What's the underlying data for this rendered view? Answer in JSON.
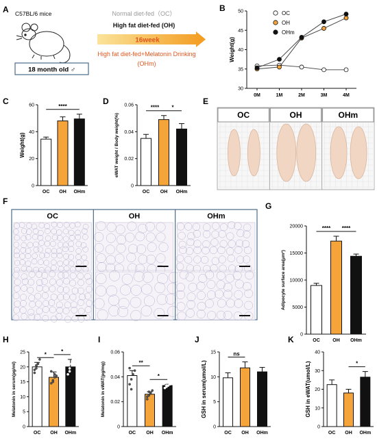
{
  "colors": {
    "oc": "#ffffff",
    "oh": "#f5a43a",
    "ohm": "#111111",
    "dot": "#555555",
    "frame": "#4a6a8a",
    "tissue": "#f1d6c4",
    "arrow_start": "#f7c85a",
    "arrow_end": "#f39b1e",
    "ohm_text": "#e0561c"
  },
  "panel_a": {
    "letter": "A",
    "mouse_label": "C57BL/6 mice",
    "age_label": "18 month old ♂",
    "groups": [
      {
        "label": "Normal diet-fed（OC）",
        "color": "#9a9a9a"
      },
      {
        "label": "High fat diet-fed (OH)",
        "color": "#111111"
      }
    ],
    "duration": "16week",
    "ohm_lines": [
      "High fat diet-fed+Melatonin Drinking",
      "(OHm)"
    ]
  },
  "panel_e": {
    "letter": "E",
    "labels": [
      "OC",
      "OH",
      "OHm"
    ]
  },
  "panel_f": {
    "letter": "F",
    "labels": [
      "OC",
      "OH",
      "OHm"
    ]
  },
  "chart_data": [
    {
      "id": "B",
      "type": "line",
      "letter": "B",
      "x": [
        "0M",
        "1M",
        "2M",
        "3M",
        "4M"
      ],
      "ylabel": "Weight(g)",
      "ylim": [
        30,
        50
      ],
      "yticks": [
        30,
        35,
        40,
        45,
        50
      ],
      "legend": "top-left",
      "series": [
        {
          "name": "OC",
          "values": [
            35.8,
            36.0,
            35.5,
            34.8,
            34.8
          ],
          "marker": "#ffffff"
        },
        {
          "name": "OH",
          "values": [
            35.0,
            35.5,
            43.0,
            45.5,
            48.2
          ],
          "marker": "#f5a43a"
        },
        {
          "name": "OHm",
          "values": [
            35.3,
            37.5,
            43.2,
            47.2,
            49.2
          ],
          "marker": "#111111"
        }
      ]
    },
    {
      "id": "C",
      "type": "bar",
      "letter": "C",
      "categories": [
        "OC",
        "OH",
        "OHm"
      ],
      "values": [
        34.5,
        48.0,
        49.5
      ],
      "errors": [
        1.5,
        3.0,
        3.5
      ],
      "ylabel": "Weight(g)",
      "ylim": [
        0,
        60
      ],
      "yticks": [
        0,
        20,
        40,
        60
      ],
      "sig": [
        {
          "from": 0,
          "to": 2,
          "label": "****"
        }
      ]
    },
    {
      "id": "D",
      "type": "bar",
      "letter": "D",
      "categories": [
        "OC",
        "OH",
        "OHm"
      ],
      "values": [
        0.035,
        0.049,
        0.042
      ],
      "errors": [
        0.003,
        0.003,
        0.004
      ],
      "ylabel": "eWAT weight / Body weight(%)",
      "ylim": [
        0,
        0.06
      ],
      "yticks": [
        0,
        0.02,
        0.04,
        0.06
      ],
      "sig": [
        {
          "from": 0,
          "to": 1,
          "label": "****"
        },
        {
          "from": 1,
          "to": 2,
          "label": "*"
        }
      ]
    },
    {
      "id": "G",
      "type": "bar",
      "letter": "G",
      "categories": [
        "OC",
        "OH",
        "OHm"
      ],
      "values": [
        9000,
        17200,
        14400
      ],
      "errors": [
        400,
        900,
        400
      ],
      "ylabel": "Adipocyte surface area(μm²)",
      "ylim": [
        0,
        20000
      ],
      "yticks": [
        0,
        5000,
        10000,
        15000,
        20000
      ],
      "sig": [
        {
          "from": 0,
          "to": 1,
          "label": "****"
        },
        {
          "from": 1,
          "to": 2,
          "label": "****"
        }
      ]
    },
    {
      "id": "H",
      "type": "bar",
      "letter": "H",
      "categories": [
        "OC",
        "OH",
        "OHm"
      ],
      "values": [
        20.0,
        16.5,
        20.0
      ],
      "errors": [
        1.5,
        1.8,
        2.5
      ],
      "ylabel": "Melatonin in serum(pg/ml)",
      "ylim": [
        0,
        25
      ],
      "yticks": [
        0,
        5,
        10,
        15,
        20,
        25
      ],
      "points": [
        [
          18.0,
          19.5,
          21.0,
          22.5,
          19.0,
          20.5
        ],
        [
          14.5,
          15.5,
          16.5,
          17.0,
          18.5,
          15.0,
          17.5
        ],
        [
          17.5,
          18.5,
          21.0,
          22.5,
          23.0,
          19.5
        ]
      ],
      "sig": [
        {
          "from": 0,
          "to": 1,
          "label": "*"
        },
        {
          "from": 1,
          "to": 2,
          "label": "*"
        }
      ]
    },
    {
      "id": "I",
      "type": "bar",
      "letter": "I",
      "categories": [
        "OC",
        "OH",
        "OHm"
      ],
      "values": [
        0.041,
        0.026,
        0.033
      ],
      "errors": [
        0.004,
        0.002,
        0.001
      ],
      "ylabel": "Melatonin in eWAT(pg/mg)",
      "ylim": [
        0,
        0.06
      ],
      "yticks": [
        0,
        0.02,
        0.04,
        0.06
      ],
      "points": [
        [
          0.034,
          0.038,
          0.042,
          0.045,
          0.047,
          0.03
        ],
        [
          0.022,
          0.025,
          0.027,
          0.029,
          0.024,
          0.028
        ],
        [
          0.031,
          0.032,
          0.033,
          0.034,
          0.035,
          0.033
        ]
      ],
      "sig": [
        {
          "from": 0,
          "to": 1,
          "label": "**"
        },
        {
          "from": 1,
          "to": 2,
          "label": "*"
        }
      ]
    },
    {
      "id": "J",
      "type": "bar",
      "letter": "J",
      "categories": [
        "OC",
        "OH",
        "OHm"
      ],
      "values": [
        9.8,
        11.8,
        11.0
      ],
      "errors": [
        1.0,
        1.2,
        0.9
      ],
      "ylabel": "GSH in serum(umol/L)",
      "ylim": [
        0,
        15
      ],
      "yticks": [
        0,
        5,
        10,
        15
      ],
      "sig": [
        {
          "from": 0,
          "to": 1,
          "label": "ns"
        }
      ]
    },
    {
      "id": "K",
      "type": "bar",
      "letter": "K",
      "categories": [
        "OC",
        "OH",
        "OHm"
      ],
      "values": [
        22.5,
        18.0,
        26.5
      ],
      "errors": [
        2.5,
        2.0,
        3.0
      ],
      "ylabel": "GSH in eWAT(umol/L)",
      "ylim": [
        0,
        40
      ],
      "yticks": [
        0,
        10,
        20,
        30,
        40
      ],
      "sig": [
        {
          "from": 1,
          "to": 2,
          "label": "*"
        }
      ]
    }
  ]
}
